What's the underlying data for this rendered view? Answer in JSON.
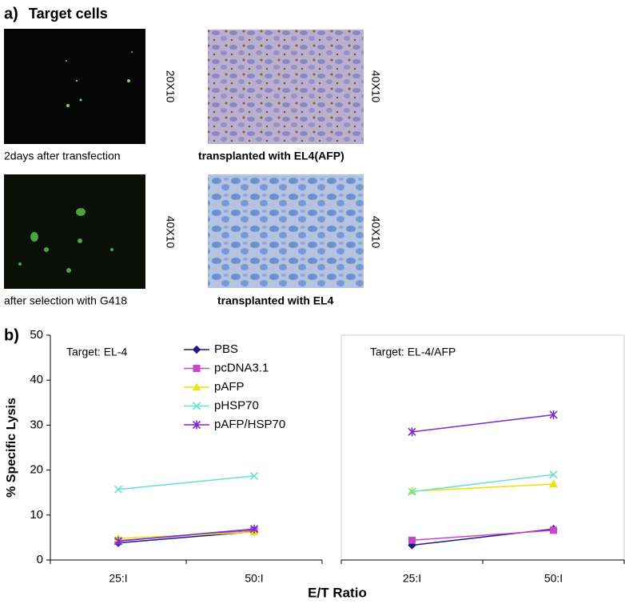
{
  "panel_a": {
    "label": "a)",
    "title": "Target cells",
    "images": [
      {
        "magnification": "20X10",
        "caption": "2days after transfection"
      },
      {
        "magnification": "40X10",
        "caption": "transplanted with EL4(AFP)"
      },
      {
        "magnification": "40X10",
        "caption": "after selection with G418"
      },
      {
        "magnification": "40X10",
        "caption": "transplanted with EL4"
      }
    ]
  },
  "panel_b": {
    "label": "b)"
  },
  "chart_data": [
    {
      "type": "line",
      "title": "Target: EL-4",
      "y_label": "% Specific Lysis",
      "x_label": "E/T Ratio",
      "categories": [
        "25:I",
        "50:I"
      ],
      "ylim": [
        0,
        50
      ],
      "yticks": [
        0,
        10,
        20,
        30,
        40,
        50
      ],
      "legend": "top-center",
      "series": [
        {
          "name": "PBS",
          "color": "#1a1a8c",
          "marker": "diamond",
          "values": [
            3.8,
            6.3
          ]
        },
        {
          "name": "pcDNA3.1",
          "color": "#cc44cc",
          "marker": "square",
          "values": [
            4.3,
            6.6
          ]
        },
        {
          "name": "pAFP",
          "color": "#e6e600",
          "marker": "triangle",
          "values": [
            4.8,
            6.2
          ]
        },
        {
          "name": "pHSP70",
          "color": "#66e0d0",
          "marker": "x",
          "values": [
            15.7,
            18.7
          ]
        },
        {
          "name": "pAFP/HSP70",
          "color": "#7a2ad0",
          "marker": "star",
          "values": [
            4.2,
            6.9
          ]
        }
      ]
    },
    {
      "type": "line",
      "title": "Target: EL-4/AFP",
      "categories": [
        "25:I",
        "50:I"
      ],
      "ylim": [
        0,
        50
      ],
      "series": [
        {
          "color": "#1a1a8c",
          "marker": "diamond",
          "values": [
            3.3,
            6.9
          ]
        },
        {
          "color": "#cc44cc",
          "marker": "square",
          "values": [
            4.4,
            6.6
          ]
        },
        {
          "color": "#e6e600",
          "marker": "triangle",
          "values": [
            15.3,
            16.9
          ]
        },
        {
          "color": "#66e0d0",
          "marker": "x",
          "values": [
            15.2,
            19.0
          ]
        },
        {
          "color": "#7a2ad0",
          "marker": "star",
          "values": [
            28.5,
            32.3
          ]
        }
      ]
    }
  ]
}
